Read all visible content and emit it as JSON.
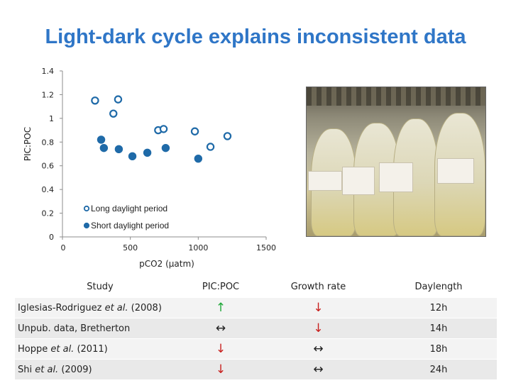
{
  "slide": {
    "title": "Light-dark cycle explains inconsistent data"
  },
  "chart_data": {
    "type": "scatter",
    "xlabel": "pCO2 (µatm)",
    "ylabel": "PIC:POC",
    "xlim": [
      0,
      1500
    ],
    "ylim": [
      0,
      1.4
    ],
    "x_ticks": [
      "0",
      "500",
      "1000",
      "1500"
    ],
    "y_ticks": [
      "0",
      "0.2",
      "0.4",
      "0.6",
      "0.8",
      "1",
      "1.2",
      "1.4"
    ],
    "grid": false,
    "legend_position": "bottom-left",
    "series": [
      {
        "name": "Long daylight period",
        "marker": "open-circle",
        "color": "#1f6aa8",
        "points": [
          [
            240,
            1.15
          ],
          [
            410,
            1.16
          ],
          [
            375,
            1.04
          ],
          [
            705,
            0.9
          ],
          [
            745,
            0.91
          ],
          [
            975,
            0.89
          ],
          [
            1090,
            0.76
          ],
          [
            1215,
            0.85
          ]
        ]
      },
      {
        "name": "Short daylight period",
        "marker": "filled-circle",
        "color": "#1f6aa8",
        "points": [
          [
            285,
            0.82
          ],
          [
            305,
            0.75
          ],
          [
            415,
            0.74
          ],
          [
            515,
            0.68
          ],
          [
            625,
            0.71
          ],
          [
            760,
            0.75
          ],
          [
            1000,
            0.66
          ]
        ]
      }
    ]
  },
  "photo": {
    "name": "culture-flasks-photo"
  },
  "table": {
    "headers": [
      "Study",
      "PIC:POC",
      "Growth rate",
      "Daylength"
    ],
    "rows": [
      {
        "study_prefix": "Iglesias-Rodriguez ",
        "study_italic": "et al.",
        "study_suffix": " (2008)",
        "pic_poc": "↑",
        "pic_poc_color": "#20a83a",
        "growth": "↓",
        "growth_color": "#c8201e",
        "daylength": "12h"
      },
      {
        "study_prefix": "Unpub. data, Bretherton",
        "study_italic": "",
        "study_suffix": "",
        "pic_poc": "↔",
        "pic_poc_color": "#222222",
        "growth": "↓",
        "growth_color": "#c8201e",
        "daylength": "14h"
      },
      {
        "study_prefix": "Hoppe ",
        "study_italic": "et al.",
        "study_suffix": " (2011)",
        "pic_poc": "↓",
        "pic_poc_color": "#c8201e",
        "growth": "↔",
        "growth_color": "#222222",
        "daylength": "18h"
      },
      {
        "study_prefix": "Shi ",
        "study_italic": "et al.",
        "study_suffix": " (2009)",
        "pic_poc": "↓",
        "pic_poc_color": "#c8201e",
        "growth": "↔",
        "growth_color": "#222222",
        "daylength": "24h"
      }
    ]
  }
}
